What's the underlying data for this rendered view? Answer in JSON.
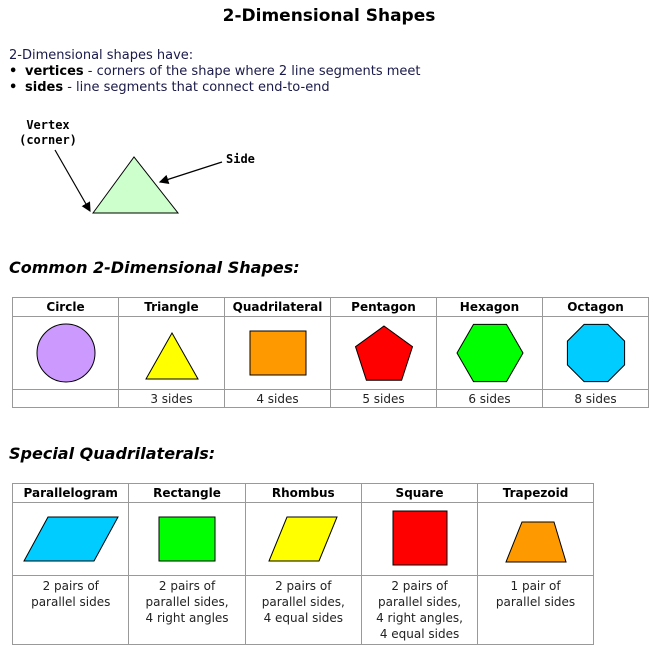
{
  "title": "2-Dimensional Shapes",
  "intro": {
    "lead": "2-Dimensional shapes have:",
    "bullets": [
      {
        "term": "vertices",
        "text": " - corners of the shape where 2 line segments meet"
      },
      {
        "term": "sides",
        "text": " - line segments that connect end-to-end"
      }
    ]
  },
  "diagram": {
    "vertex_label_line1": "Vertex",
    "vertex_label_line2": "(corner)",
    "side_label": "Side",
    "triangle_color": "#ccffcc"
  },
  "common": {
    "heading": "Common 2-Dimensional Shapes:",
    "columns": [
      {
        "name": "Circle",
        "caption": "",
        "color": "#cc99ff",
        "icon": "circle"
      },
      {
        "name": "Triangle",
        "caption": "3 sides",
        "color": "#ffff00",
        "icon": "triangle"
      },
      {
        "name": "Quadrilateral",
        "caption": "4 sides",
        "color": "#ff9900",
        "icon": "rectangle"
      },
      {
        "name": "Pentagon",
        "caption": "5 sides",
        "color": "#ff0000",
        "icon": "pentagon"
      },
      {
        "name": "Hexagon",
        "caption": "6 sides",
        "color": "#00ff00",
        "icon": "hexagon"
      },
      {
        "name": "Octagon",
        "caption": "8 sides",
        "color": "#00ccff",
        "icon": "octagon"
      }
    ]
  },
  "special": {
    "heading": "Special Quadrilaterals:",
    "columns": [
      {
        "name": "Parallelogram",
        "caption_lines": [
          "2 pairs of",
          "parallel sides"
        ],
        "color": "#00ccff",
        "icon": "parallelogram"
      },
      {
        "name": "Rectangle",
        "caption_lines": [
          "2 pairs of",
          "parallel sides,",
          "4 right angles"
        ],
        "color": "#00ff00",
        "icon": "rectangle"
      },
      {
        "name": "Rhombus",
        "caption_lines": [
          "2 pairs of",
          "parallel sides,",
          "4 equal sides"
        ],
        "color": "#ffff00",
        "icon": "rhombus"
      },
      {
        "name": "Square",
        "caption_lines": [
          "2 pairs of",
          "parallel sides,",
          "4 right angles,",
          "4 equal sides"
        ],
        "color": "#ff0000",
        "icon": "square"
      },
      {
        "name": "Trapezoid",
        "caption_lines": [
          "1 pair of",
          "parallel sides"
        ],
        "color": "#ff9900",
        "icon": "trapezoid"
      }
    ]
  }
}
